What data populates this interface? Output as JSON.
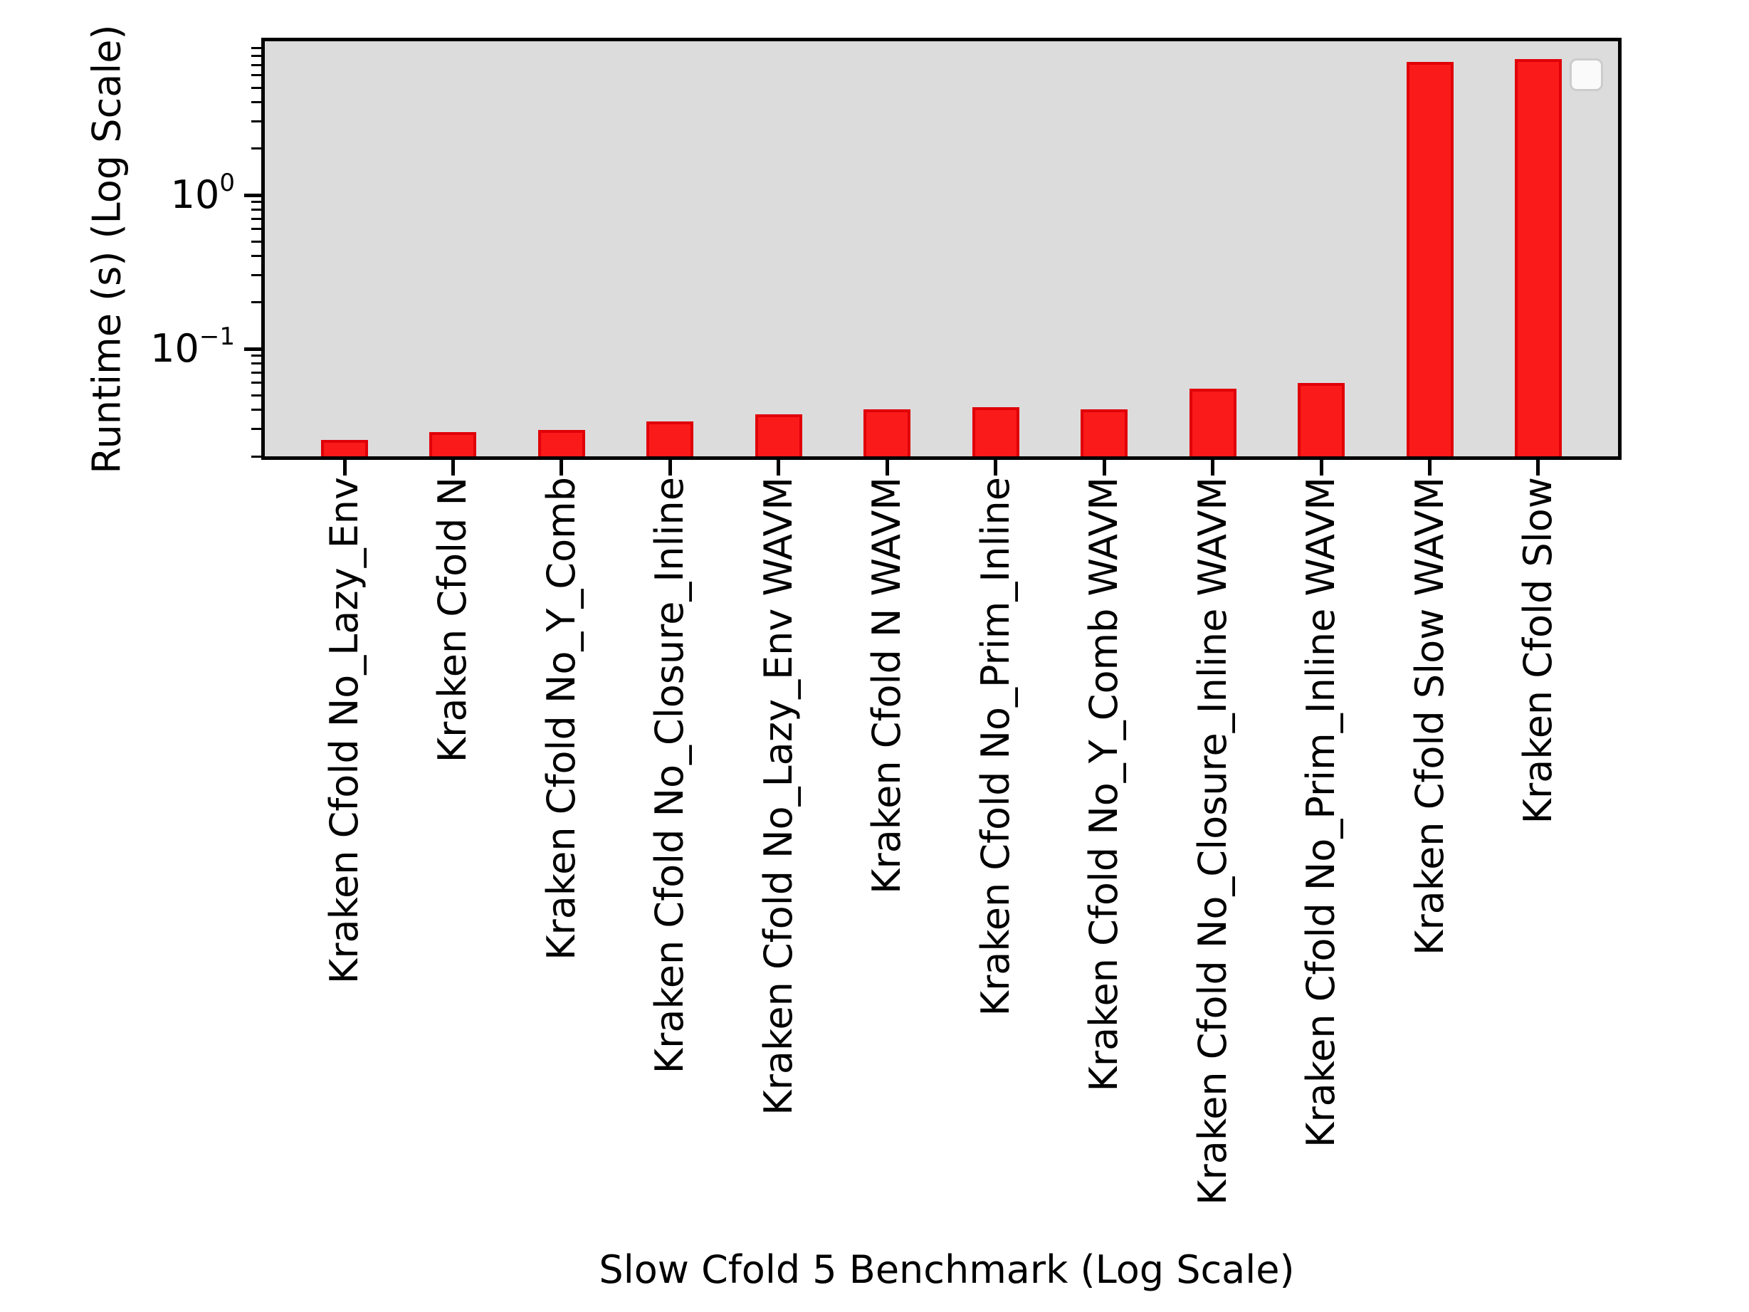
{
  "chart_data": {
    "type": "bar",
    "title": "",
    "xlabel": "Slow Cfold 5 Benchmark (Log Scale)",
    "ylabel": "Runtime (s) (Log Scale)",
    "categories": [
      "Kraken Cfold No_Lazy_Env",
      "Kraken Cfold N",
      "Kraken Cfold No_Y_Comb",
      "Kraken Cfold No_Closure_Inline",
      "Kraken Cfold No_Lazy_Env WAVM",
      "Kraken Cfold N WAVM",
      "Kraken Cfold No_Prim_Inline",
      "Kraken Cfold No_Y_Comb WAVM",
      "Kraken Cfold No_Closure_Inline WAVM",
      "Kraken Cfold No_Prim_Inline WAVM",
      "Kraken Cfold Slow WAVM",
      "Kraken Cfold Slow"
    ],
    "values": [
      0.0255,
      0.0287,
      0.0297,
      0.0337,
      0.0375,
      0.0406,
      0.0417,
      0.0406,
      0.0551,
      0.0601,
      7.34,
      7.69
    ],
    "yscale": "log",
    "ylim": [
      0.02,
      10
    ],
    "y_major_ticks": [
      {
        "value": 1,
        "base": "10",
        "exp": "0"
      },
      {
        "value": 0.1,
        "base": "10",
        "exp": "−1"
      }
    ],
    "y_minor_tick_mantissas": [
      2,
      3,
      4,
      5,
      6,
      7,
      8,
      9
    ],
    "grid": false,
    "legend": {
      "visible": true,
      "position": "upper-right",
      "entries": []
    },
    "colors": {
      "bar_fill": "#fa1a1a",
      "bar_edge": "#e00008",
      "plot_bg": "#dcdcdc",
      "figure_bg": "#ffffff",
      "axis": "#000000",
      "legend_bg": "#ffffff",
      "legend_border": "#cccccc"
    }
  }
}
